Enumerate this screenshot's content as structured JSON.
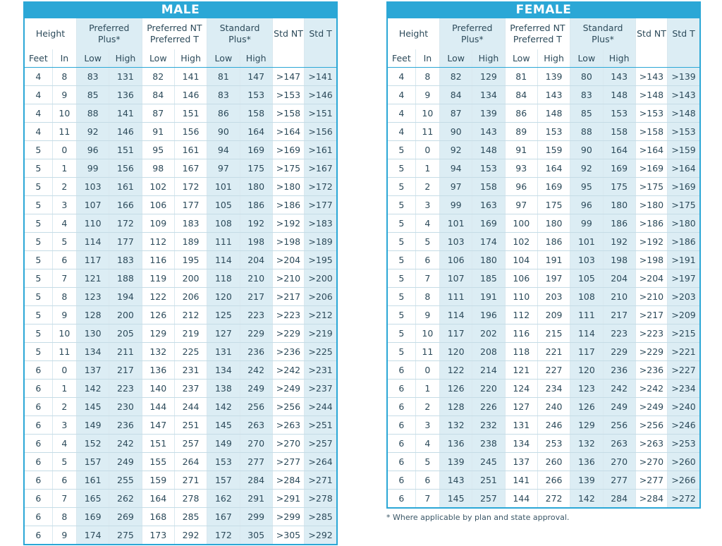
{
  "header": {
    "height": "Height",
    "feet": "Feet",
    "inches": "In",
    "preferred_plus": "Preferred Plus*",
    "preferred_nt": "Preferred NT Preferred T",
    "standard_plus": "Standard Plus*",
    "std_nt": "Std NT",
    "std_t": "Std T",
    "low": "Low",
    "high": "High"
  },
  "male": {
    "title": "MALE",
    "rows": [
      [
        "4",
        "8",
        "83",
        "131",
        "82",
        "141",
        "81",
        "147",
        ">147",
        ">141"
      ],
      [
        "4",
        "9",
        "85",
        "136",
        "84",
        "146",
        "83",
        "153",
        ">153",
        ">146"
      ],
      [
        "4",
        "10",
        "88",
        "141",
        "87",
        "151",
        "86",
        "158",
        ">158",
        ">151"
      ],
      [
        "4",
        "11",
        "92",
        "146",
        "91",
        "156",
        "90",
        "164",
        ">164",
        ">156"
      ],
      [
        "5",
        "0",
        "96",
        "151",
        "95",
        "161",
        "94",
        "169",
        ">169",
        ">161"
      ],
      [
        "5",
        "1",
        "99",
        "156",
        "98",
        "167",
        "97",
        "175",
        ">175",
        ">167"
      ],
      [
        "5",
        "2",
        "103",
        "161",
        "102",
        "172",
        "101",
        "180",
        ">180",
        ">172"
      ],
      [
        "5",
        "3",
        "107",
        "166",
        "106",
        "177",
        "105",
        "186",
        ">186",
        ">177"
      ],
      [
        "5",
        "4",
        "110",
        "172",
        "109",
        "183",
        "108",
        "192",
        ">192",
        ">183"
      ],
      [
        "5",
        "5",
        "114",
        "177",
        "112",
        "189",
        "111",
        "198",
        ">198",
        ">189"
      ],
      [
        "5",
        "6",
        "117",
        "183",
        "116",
        "195",
        "114",
        "204",
        ">204",
        ">195"
      ],
      [
        "5",
        "7",
        "121",
        "188",
        "119",
        "200",
        "118",
        "210",
        ">210",
        ">200"
      ],
      [
        "5",
        "8",
        "123",
        "194",
        "122",
        "206",
        "120",
        "217",
        ">217",
        ">206"
      ],
      [
        "5",
        "9",
        "128",
        "200",
        "126",
        "212",
        "125",
        "223",
        ">223",
        ">212"
      ],
      [
        "5",
        "10",
        "130",
        "205",
        "129",
        "219",
        "127",
        "229",
        ">229",
        ">219"
      ],
      [
        "5",
        "11",
        "134",
        "211",
        "132",
        "225",
        "131",
        "236",
        ">236",
        ">225"
      ],
      [
        "6",
        "0",
        "137",
        "217",
        "136",
        "231",
        "134",
        "242",
        ">242",
        ">231"
      ],
      [
        "6",
        "1",
        "142",
        "223",
        "140",
        "237",
        "138",
        "249",
        ">249",
        ">237"
      ],
      [
        "6",
        "2",
        "145",
        "230",
        "144",
        "244",
        "142",
        "256",
        ">256",
        ">244"
      ],
      [
        "6",
        "3",
        "149",
        "236",
        "147",
        "251",
        "145",
        "263",
        ">263",
        ">251"
      ],
      [
        "6",
        "4",
        "152",
        "242",
        "151",
        "257",
        "149",
        "270",
        ">270",
        ">257"
      ],
      [
        "6",
        "5",
        "157",
        "249",
        "155",
        "264",
        "153",
        "277",
        ">277",
        ">264"
      ],
      [
        "6",
        "6",
        "161",
        "255",
        "159",
        "271",
        "157",
        "284",
        ">284",
        ">271"
      ],
      [
        "6",
        "7",
        "165",
        "262",
        "164",
        "278",
        "162",
        "291",
        ">291",
        ">278"
      ],
      [
        "6",
        "8",
        "169",
        "269",
        "168",
        "285",
        "167",
        "299",
        ">299",
        ">285"
      ],
      [
        "6",
        "9",
        "174",
        "275",
        "173",
        "292",
        "172",
        "305",
        ">305",
        ">292"
      ]
    ]
  },
  "female": {
    "title": "FEMALE",
    "rows": [
      [
        "4",
        "8",
        "82",
        "129",
        "81",
        "139",
        "80",
        "143",
        ">143",
        ">139"
      ],
      [
        "4",
        "9",
        "84",
        "134",
        "84",
        "143",
        "83",
        "148",
        ">148",
        ">143"
      ],
      [
        "4",
        "10",
        "87",
        "139",
        "86",
        "148",
        "85",
        "153",
        ">153",
        ">148"
      ],
      [
        "4",
        "11",
        "90",
        "143",
        "89",
        "153",
        "88",
        "158",
        ">158",
        ">153"
      ],
      [
        "5",
        "0",
        "92",
        "148",
        "91",
        "159",
        "90",
        "164",
        ">164",
        ">159"
      ],
      [
        "5",
        "1",
        "94",
        "153",
        "93",
        "164",
        "92",
        "169",
        ">169",
        ">164"
      ],
      [
        "5",
        "2",
        "97",
        "158",
        "96",
        "169",
        "95",
        "175",
        ">175",
        ">169"
      ],
      [
        "5",
        "3",
        "99",
        "163",
        "97",
        "175",
        "96",
        "180",
        ">180",
        ">175"
      ],
      [
        "5",
        "4",
        "101",
        "169",
        "100",
        "180",
        "99",
        "186",
        ">186",
        ">180"
      ],
      [
        "5",
        "5",
        "103",
        "174",
        "102",
        "186",
        "101",
        "192",
        ">192",
        ">186"
      ],
      [
        "5",
        "6",
        "106",
        "180",
        "104",
        "191",
        "103",
        "198",
        ">198",
        ">191"
      ],
      [
        "5",
        "7",
        "107",
        "185",
        "106",
        "197",
        "105",
        "204",
        ">204",
        ">197"
      ],
      [
        "5",
        "8",
        "111",
        "191",
        "110",
        "203",
        "108",
        "210",
        ">210",
        ">203"
      ],
      [
        "5",
        "9",
        "114",
        "196",
        "112",
        "209",
        "111",
        "217",
        ">217",
        ">209"
      ],
      [
        "5",
        "10",
        "117",
        "202",
        "116",
        "215",
        "114",
        "223",
        ">223",
        ">215"
      ],
      [
        "5",
        "11",
        "120",
        "208",
        "118",
        "221",
        "117",
        "229",
        ">229",
        ">221"
      ],
      [
        "6",
        "0",
        "122",
        "214",
        "121",
        "227",
        "120",
        "236",
        ">236",
        ">227"
      ],
      [
        "6",
        "1",
        "126",
        "220",
        "124",
        "234",
        "123",
        "242",
        ">242",
        ">234"
      ],
      [
        "6",
        "2",
        "128",
        "226",
        "127",
        "240",
        "126",
        "249",
        ">249",
        ">240"
      ],
      [
        "6",
        "3",
        "132",
        "232",
        "131",
        "246",
        "129",
        "256",
        ">256",
        ">246"
      ],
      [
        "6",
        "4",
        "136",
        "238",
        "134",
        "253",
        "132",
        "263",
        ">263",
        ">253"
      ],
      [
        "6",
        "5",
        "139",
        "245",
        "137",
        "260",
        "136",
        "270",
        ">270",
        ">260"
      ],
      [
        "6",
        "6",
        "143",
        "251",
        "141",
        "266",
        "139",
        "277",
        ">277",
        ">266"
      ],
      [
        "6",
        "7",
        "145",
        "257",
        "144",
        "272",
        "142",
        "284",
        ">284",
        ">272"
      ]
    ]
  },
  "footnote": "* Where applicable by plan and state approval."
}
